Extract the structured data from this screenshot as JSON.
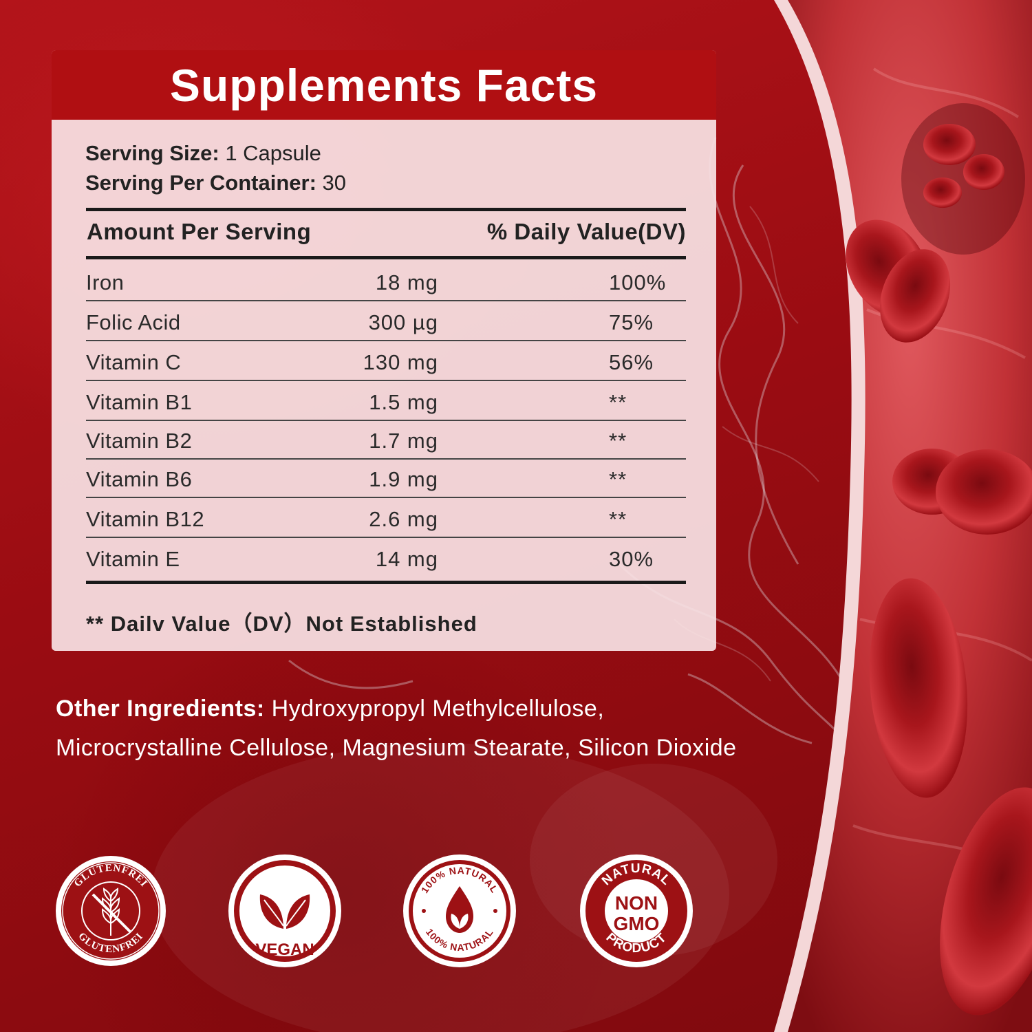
{
  "panel": {
    "title": "Supplements Facts",
    "serving_size_label": "Serving Size:",
    "serving_size_value": "1 Capsule",
    "servings_label": "Serving Per Container:",
    "servings_value": "30",
    "amount_header": "Amount Per Serving",
    "dv_header": "% Daily Value(DV)",
    "rows": [
      {
        "name": "Iron",
        "amount": "18 mg",
        "dv": "100%"
      },
      {
        "name": "Folic Acid",
        "amount": "300 µg",
        "dv": "75%"
      },
      {
        "name": "Vitamin C",
        "amount": "130 mg",
        "dv": "56%"
      },
      {
        "name": "Vitamin B1",
        "amount": "1.5 mg",
        "dv": "**"
      },
      {
        "name": "Vitamin B2",
        "amount": "1.7 mg",
        "dv": "**"
      },
      {
        "name": "Vitamin B6",
        "amount": "1.9 mg",
        "dv": "**"
      },
      {
        "name": "Vitamin B12",
        "amount": "2.6 mg",
        "dv": "**"
      },
      {
        "name": "Vitamin E",
        "amount": "14 mg",
        "dv": "30%"
      }
    ],
    "footnote": "** Dailv Value（DV）Not Established"
  },
  "other_ingredients": {
    "label": "Other Ingredients:",
    "text": " Hydroxypropyl Methylcellulose, Microcrystalline Cellulose, Magnesium Stearate, Silicon Dioxide"
  },
  "badges": {
    "gluten": {
      "top": "GLUTENFREI",
      "bottom": "GLUTENFREI"
    },
    "vegan": {
      "label": "VEGAN"
    },
    "natural": {
      "top": "100% NATURAL",
      "bottom": "100% NATURAL"
    },
    "nongmo": {
      "top": "NATURAL",
      "line1": "NON",
      "line2": "GMO",
      "bottom": "PRODUCT"
    }
  },
  "colors": {
    "accent": "#b00f12",
    "badge": "#9d1114"
  }
}
